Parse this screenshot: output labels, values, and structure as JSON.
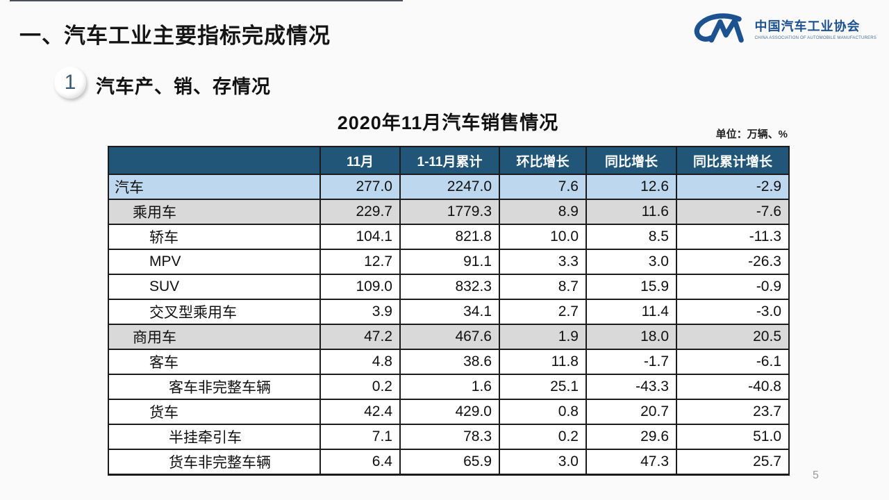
{
  "page": {
    "title": "一、汽车工业主要指标完成情况",
    "page_number": "5"
  },
  "logo": {
    "org_name_cn": "中国汽车工业协会",
    "org_name_en": "CHINA ASSOCIATION OF AUTOMOBILE MANUFACTURERS"
  },
  "section": {
    "badge": "1",
    "title": "汽车产、销、存情况"
  },
  "table": {
    "title": "2020年11月汽车销售情况",
    "unit_label": "单位：万辆、%",
    "columns": [
      "",
      "11月",
      "1-11月累计",
      "环比增长",
      "同比增长",
      "同比累计增长"
    ],
    "rows": [
      {
        "label": "汽车",
        "indent": 0,
        "highlight": "blue",
        "values": [
          "277.0",
          "2247.0",
          "7.6",
          "12.6",
          "-2.9"
        ]
      },
      {
        "label": "乘用车",
        "indent": 1,
        "highlight": "gray",
        "values": [
          "229.7",
          "1779.3",
          "8.9",
          "11.6",
          "-7.6"
        ]
      },
      {
        "label": "轿车",
        "indent": 2,
        "highlight": "none",
        "values": [
          "104.1",
          "821.8",
          "10.0",
          "8.5",
          "-11.3"
        ]
      },
      {
        "label": "MPV",
        "indent": 2,
        "highlight": "none",
        "values": [
          "12.7",
          "91.1",
          "3.3",
          "3.0",
          "-26.3"
        ]
      },
      {
        "label": "SUV",
        "indent": 2,
        "highlight": "none",
        "values": [
          "109.0",
          "832.3",
          "8.7",
          "15.9",
          "-0.9"
        ]
      },
      {
        "label": "交叉型乘用车",
        "indent": 2,
        "highlight": "none",
        "values": [
          "3.9",
          "34.1",
          "2.7",
          "11.4",
          "-3.0"
        ]
      },
      {
        "label": "商用车",
        "indent": 1,
        "highlight": "gray",
        "values": [
          "47.2",
          "467.6",
          "1.9",
          "18.0",
          "20.5"
        ]
      },
      {
        "label": "客车",
        "indent": 2,
        "highlight": "none",
        "values": [
          "4.8",
          "38.6",
          "11.8",
          "-1.7",
          "-6.1"
        ]
      },
      {
        "label": "客车非完整车辆",
        "indent": 3,
        "highlight": "none",
        "values": [
          "0.2",
          "1.6",
          "25.1",
          "-43.3",
          "-40.8"
        ]
      },
      {
        "label": "货车",
        "indent": 2,
        "highlight": "none",
        "values": [
          "42.4",
          "429.0",
          "0.8",
          "20.7",
          "23.7"
        ]
      },
      {
        "label": "半挂牵引车",
        "indent": 3,
        "highlight": "none",
        "values": [
          "7.1",
          "78.3",
          "0.2",
          "29.6",
          "51.0"
        ]
      },
      {
        "label": "货车非完整车辆",
        "indent": 3,
        "highlight": "none",
        "values": [
          "6.4",
          "65.9",
          "3.0",
          "47.3",
          "25.7"
        ]
      }
    ]
  },
  "colors": {
    "header_bg": "#215679",
    "row_blue": "#bdd7ee",
    "row_gray": "#d9d9d9",
    "logo_blue": "#1d5290"
  }
}
